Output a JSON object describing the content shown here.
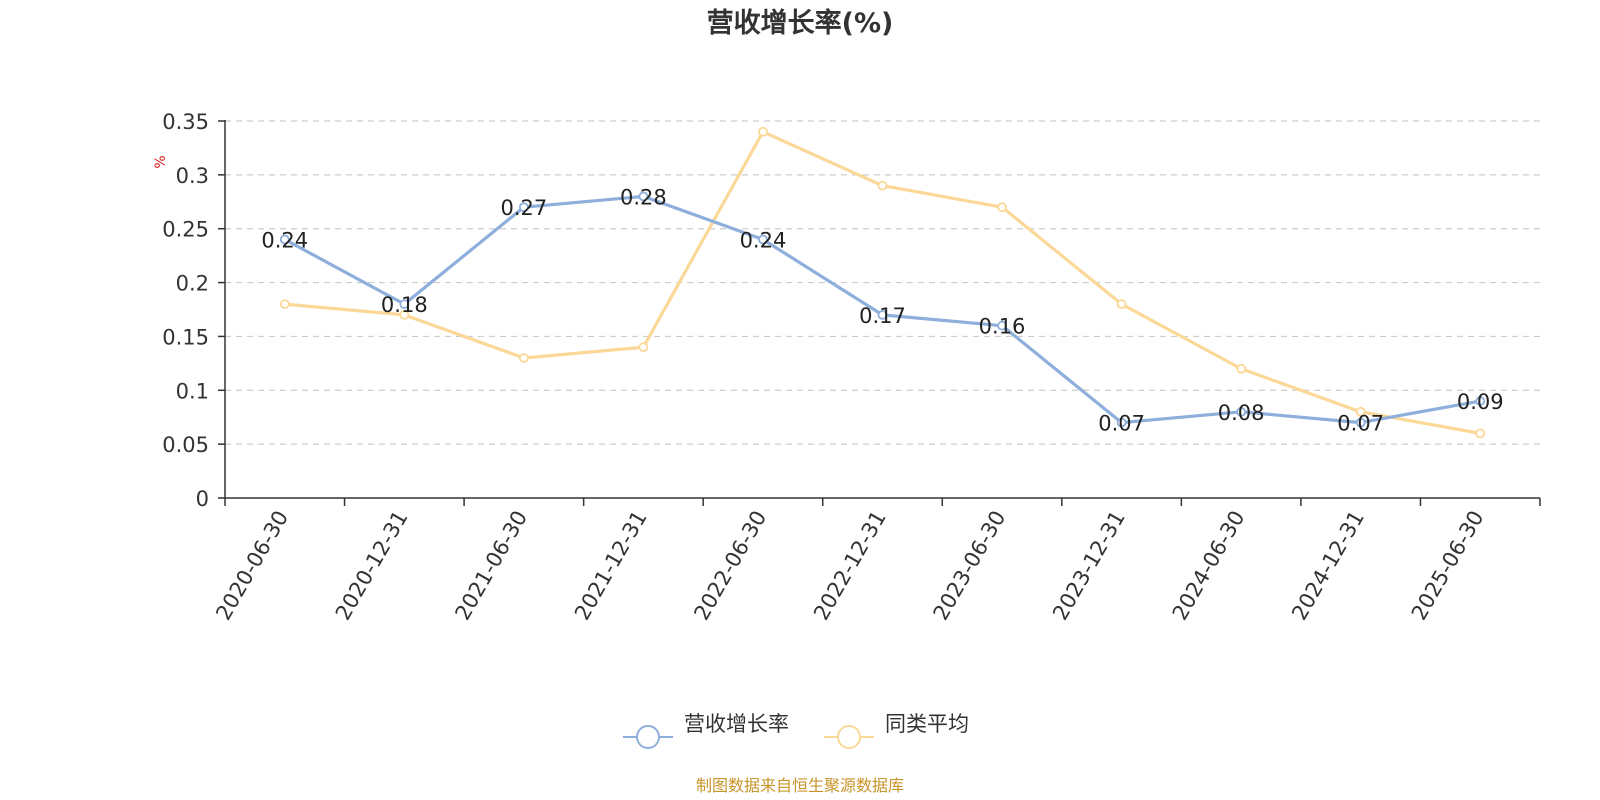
{
  "chart_data": {
    "type": "line",
    "title": "营收增长率(%)",
    "ylabel": "%",
    "xlabel": "",
    "categories": [
      "2020-06-30",
      "2020-12-31",
      "2021-06-30",
      "2021-12-31",
      "2022-06-30",
      "2022-12-31",
      "2023-06-30",
      "2023-12-31",
      "2024-06-30",
      "2024-12-31",
      "2025-06-30"
    ],
    "ylim": [
      0,
      0.35
    ],
    "yticks": [
      "0",
      "0.05",
      "0.1",
      "0.15",
      "0.2",
      "0.25",
      "0.3",
      "0.35"
    ],
    "grid": true,
    "legend_position": "bottom-center",
    "series": [
      {
        "name": "营收增长率",
        "color": "#8eaedb",
        "values": [
          0.24,
          0.18,
          0.27,
          0.28,
          0.24,
          0.17,
          0.16,
          0.07,
          0.08,
          0.07,
          0.09
        ],
        "value_labels": [
          "0.24",
          "0.18",
          "0.27",
          "0.28",
          "0.24",
          "0.17",
          "0.16",
          "0.07",
          "0.08",
          "0.07",
          "0.09"
        ],
        "show_labels": true
      },
      {
        "name": "同类平均",
        "color": "#fbd898",
        "values": [
          0.18,
          0.17,
          0.13,
          0.14,
          0.34,
          0.29,
          0.27,
          0.18,
          0.12,
          0.08,
          0.06
        ],
        "show_labels": false
      }
    ],
    "source_note": "制图数据来自恒生聚源数据库",
    "colors": {
      "axis": "#333333",
      "grid": "#cccccc",
      "ylabel": "#e02020",
      "title": "#333333",
      "source": "#c8952a",
      "label": "#222222"
    }
  }
}
